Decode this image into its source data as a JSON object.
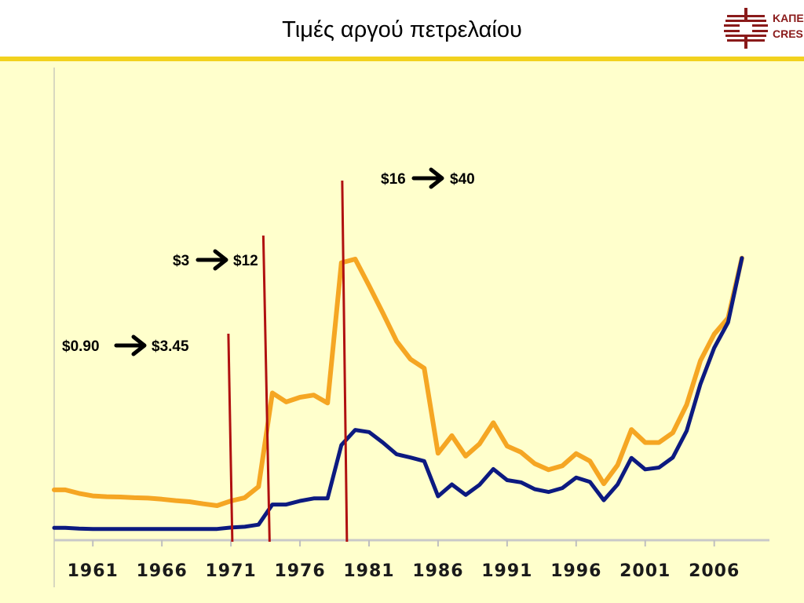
{
  "header": {
    "title": "Τιμές αργού πετρελαίου"
  },
  "logo": {
    "line1": "ΚΑΠΕ",
    "line2": "CRES",
    "icon": "cres-logo-icon",
    "color": "#8a1a1a"
  },
  "colors": {
    "nominal": "#f5a623",
    "real": "#0c1a80",
    "marker": "#b01010",
    "arrow": "#000000",
    "accent": "#f2d21e",
    "background": "#ffffcc"
  },
  "annotations": [
    {
      "from": "$0.90",
      "to": "$3.45",
      "year": 1971.1
    },
    {
      "from": "$3",
      "to": "$12",
      "year": 1973.8
    },
    {
      "from": "$16",
      "to": "$40",
      "year": 1979.4
    }
  ],
  "chart_data": {
    "type": "line",
    "title": "Τιμές αργού πετρελαίου",
    "xlabel": "",
    "ylabel": "",
    "x_ticks": [
      "1961",
      "1966",
      "1971",
      "1976",
      "1981",
      "1986",
      "1991",
      "1996",
      "2001",
      "2006"
    ],
    "xlim": [
      1958.2,
      2009.6
    ],
    "ylim": [
      0,
      100
    ],
    "grid": false,
    "legend": "none",
    "series": [
      {
        "color": "#f5a623",
        "x": [
          1958.2,
          1959,
          1960,
          1961,
          1962,
          1963,
          1964,
          1965,
          1966,
          1967,
          1968,
          1969,
          1970,
          1971,
          1972,
          1973,
          1974,
          1975,
          1976,
          1977,
          1978,
          1979,
          1980,
          1981,
          1982,
          1983,
          1984,
          1985,
          1986,
          1987,
          1988,
          1989,
          1990,
          1991,
          1992,
          1993,
          1994,
          1995,
          1996,
          1997,
          1998,
          1999,
          2000,
          2001,
          2002,
          2003,
          2004,
          2005,
          2006,
          2007,
          2008
        ],
        "y": [
          12.5,
          12.5,
          11.5,
          10.8,
          10.6,
          10.5,
          10.3,
          10.2,
          9.9,
          9.5,
          9.2,
          8.6,
          8.1,
          9.4,
          10.3,
          13.4,
          39.5,
          37.0,
          38.3,
          38.9,
          36.7,
          75.8,
          76.8,
          69.4,
          61.8,
          53.9,
          48.9,
          46.4,
          22.7,
          27.6,
          21.9,
          25.3,
          31.2,
          24.7,
          23.0,
          19.8,
          18.1,
          19.2,
          22.6,
          20.5,
          14.2,
          19.4,
          29.3,
          25.7,
          25.7,
          28.4,
          36.2,
          48.5,
          55.9,
          60.4,
          77.1
        ]
      },
      {
        "color": "#0c1a80",
        "x": [
          1958.2,
          1959,
          1960,
          1961,
          1962,
          1963,
          1964,
          1965,
          1966,
          1967,
          1968,
          1969,
          1970,
          1971,
          1972,
          1973,
          1974,
          1975,
          1976,
          1977,
          1978,
          1979,
          1980,
          1981,
          1982,
          1983,
          1984,
          1985,
          1986,
          1987,
          1988,
          1989,
          1990,
          1991,
          1992,
          1993,
          1994,
          1995,
          1996,
          1997,
          1998,
          1999,
          2000,
          2001,
          2002,
          2003,
          2004,
          2005,
          2006,
          2007,
          2008
        ],
        "y": [
          1.9,
          1.9,
          1.7,
          1.6,
          1.6,
          1.6,
          1.6,
          1.6,
          1.6,
          1.6,
          1.6,
          1.6,
          1.6,
          2.0,
          2.2,
          2.8,
          8.4,
          8.4,
          9.4,
          10.1,
          10.1,
          25.0,
          29.2,
          28.6,
          25.7,
          22.4,
          21.5,
          20.5,
          10.7,
          14.0,
          11.1,
          13.9,
          18.3,
          15.2,
          14.6,
          12.7,
          11.9,
          13.0,
          15.9,
          14.7,
          9.6,
          14.0,
          21.4,
          18.2,
          18.7,
          21.5,
          28.9,
          42.0,
          52.1,
          59.2,
          77.1
        ]
      }
    ]
  }
}
